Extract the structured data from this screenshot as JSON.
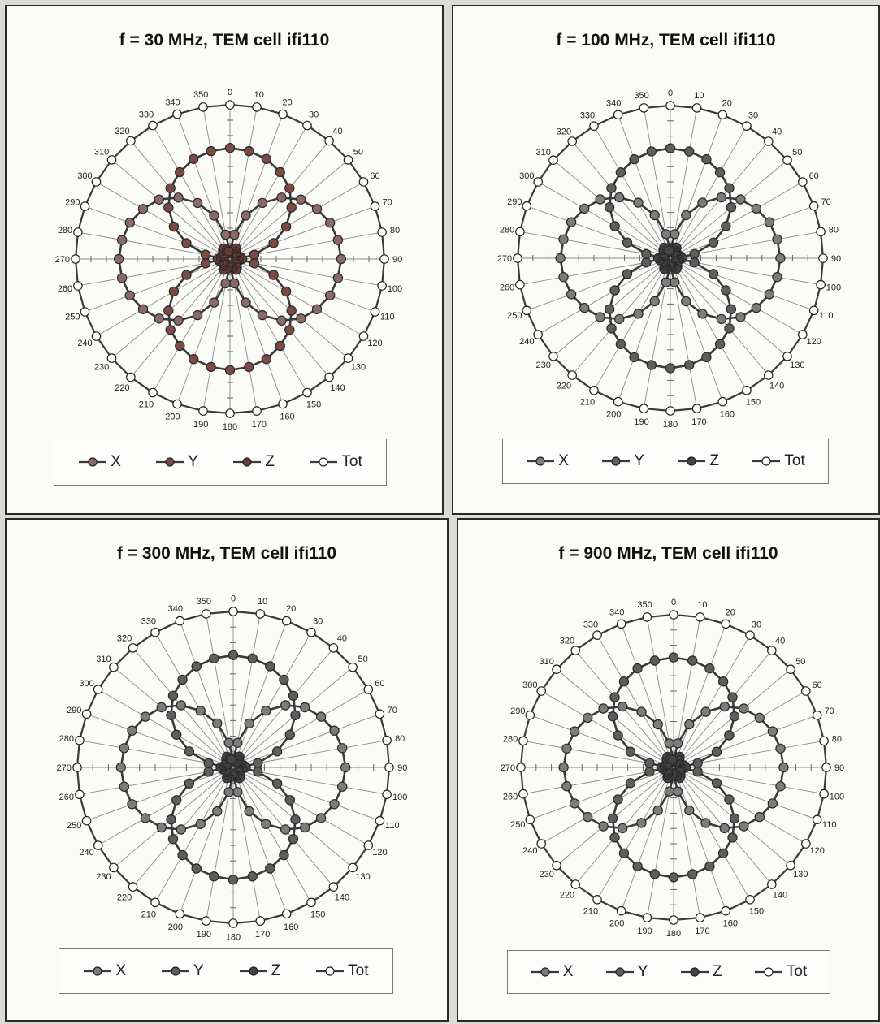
{
  "chart_data": [
    {
      "type": "polar",
      "title": "f = 30 MHz, TEM cell ifi110",
      "theta_labels": [
        "0",
        "10",
        "20",
        "30",
        "40",
        "50",
        "60",
        "70",
        "80",
        "90",
        "100",
        "110",
        "120",
        "130",
        "140",
        "150",
        "160",
        "170",
        "180",
        "190",
        "200",
        "210",
        "220",
        "230",
        "240",
        "250",
        "260",
        "270",
        "280",
        "290",
        "300",
        "310",
        "320",
        "330",
        "340",
        "350"
      ],
      "theta_step_deg": 10,
      "r_max": 1.0,
      "radial_gridlines": false,
      "colors": {
        "X": "#8a6a66",
        "Y": "#7a4a44",
        "Z": "#6b3a34",
        "Tot": "#ffffff",
        "line": "#3a3a3a"
      },
      "series": [
        {
          "name": "X",
          "values": [
            0.05,
            0.16,
            0.3,
            0.42,
            0.52,
            0.6,
            0.65,
            0.69,
            0.71,
            0.72,
            0.71,
            0.69,
            0.65,
            0.6,
            0.52,
            0.42,
            0.3,
            0.16,
            0.05,
            0.16,
            0.3,
            0.42,
            0.52,
            0.6,
            0.65,
            0.69,
            0.71,
            0.72,
            0.71,
            0.69,
            0.65,
            0.6,
            0.52,
            0.42,
            0.3,
            0.16
          ]
        },
        {
          "name": "Y",
          "values": [
            0.72,
            0.71,
            0.69,
            0.65,
            0.6,
            0.52,
            0.42,
            0.3,
            0.16,
            0.05,
            0.16,
            0.3,
            0.42,
            0.52,
            0.6,
            0.65,
            0.69,
            0.71,
            0.72,
            0.71,
            0.69,
            0.65,
            0.6,
            0.52,
            0.42,
            0.3,
            0.16,
            0.05,
            0.16,
            0.3,
            0.42,
            0.52,
            0.6,
            0.65,
            0.69,
            0.71
          ]
        },
        {
          "name": "Z",
          "values": [
            0.04,
            0.05,
            0.07,
            0.08,
            0.06,
            0.05,
            0.04,
            0.05,
            0.07,
            0.08,
            0.06,
            0.05,
            0.04,
            0.05,
            0.07,
            0.08,
            0.06,
            0.05,
            0.04,
            0.05,
            0.07,
            0.08,
            0.06,
            0.05,
            0.04,
            0.05,
            0.07,
            0.08,
            0.06,
            0.05,
            0.04,
            0.05,
            0.07,
            0.08,
            0.06,
            0.05
          ]
        },
        {
          "name": "Tot",
          "values": [
            1,
            1,
            1,
            1,
            1,
            1,
            1,
            1,
            1,
            1,
            1,
            1,
            1,
            1,
            1,
            1,
            1,
            1,
            1,
            1,
            1,
            1,
            1,
            1,
            1,
            1,
            1,
            1,
            1,
            1,
            1,
            1,
            1,
            1,
            1,
            1
          ]
        }
      ],
      "legend": {
        "position": "bottom",
        "items": [
          "X",
          "Y",
          "Z",
          "Tot"
        ]
      }
    },
    {
      "type": "polar",
      "title": "f = 100 MHz, TEM cell ifi110",
      "theta_labels": [
        "0",
        "10",
        "20",
        "30",
        "40",
        "50",
        "60",
        "70",
        "80",
        "90",
        "100",
        "110",
        "120",
        "130",
        "140",
        "150",
        "160",
        "170",
        "180",
        "190",
        "200",
        "210",
        "220",
        "230",
        "240",
        "250",
        "260",
        "270",
        "280",
        "290",
        "300",
        "310",
        "320",
        "330",
        "340",
        "350"
      ],
      "theta_step_deg": 10,
      "r_max": 1.0,
      "radial_gridlines": false,
      "colors": {
        "X": "#7c7c7c",
        "Y": "#5e5e5e",
        "Z": "#444444",
        "Tot": "#ffffff",
        "line": "#3a3a3a"
      },
      "series": [
        {
          "name": "X",
          "values": [
            0.05,
            0.16,
            0.3,
            0.42,
            0.52,
            0.6,
            0.65,
            0.69,
            0.71,
            0.72,
            0.71,
            0.69,
            0.65,
            0.6,
            0.52,
            0.42,
            0.3,
            0.16,
            0.05,
            0.16,
            0.3,
            0.42,
            0.52,
            0.6,
            0.65,
            0.69,
            0.71,
            0.72,
            0.71,
            0.69,
            0.65,
            0.6,
            0.52,
            0.42,
            0.3,
            0.16
          ]
        },
        {
          "name": "Y",
          "values": [
            0.72,
            0.71,
            0.69,
            0.65,
            0.6,
            0.52,
            0.42,
            0.3,
            0.16,
            0.05,
            0.16,
            0.3,
            0.42,
            0.52,
            0.6,
            0.65,
            0.69,
            0.71,
            0.72,
            0.71,
            0.69,
            0.65,
            0.6,
            0.52,
            0.42,
            0.3,
            0.16,
            0.05,
            0.16,
            0.3,
            0.42,
            0.52,
            0.6,
            0.65,
            0.69,
            0.71
          ]
        },
        {
          "name": "Z",
          "values": [
            0.04,
            0.05,
            0.07,
            0.08,
            0.06,
            0.05,
            0.04,
            0.05,
            0.07,
            0.08,
            0.06,
            0.05,
            0.04,
            0.05,
            0.07,
            0.08,
            0.06,
            0.05,
            0.04,
            0.05,
            0.07,
            0.08,
            0.06,
            0.05,
            0.04,
            0.05,
            0.07,
            0.08,
            0.06,
            0.05,
            0.04,
            0.05,
            0.07,
            0.08,
            0.06,
            0.05
          ]
        },
        {
          "name": "Tot",
          "values": [
            1,
            1,
            1,
            1,
            1,
            1,
            1,
            1,
            1,
            1,
            1,
            1,
            1,
            1,
            1,
            1,
            1,
            1,
            1,
            1,
            1,
            1,
            1,
            1,
            1,
            1,
            1,
            1,
            1,
            1,
            1,
            1,
            1,
            1,
            1,
            1
          ]
        }
      ],
      "legend": {
        "position": "bottom",
        "items": [
          "X",
          "Y",
          "Z",
          "Tot"
        ]
      }
    },
    {
      "type": "polar",
      "title": "f = 300 MHz, TEM cell ifi110",
      "theta_labels": [
        "0",
        "10",
        "20",
        "30",
        "40",
        "50",
        "60",
        "70",
        "80",
        "90",
        "100",
        "110",
        "120",
        "130",
        "140",
        "150",
        "160",
        "170",
        "180",
        "190",
        "200",
        "210",
        "220",
        "230",
        "240",
        "250",
        "260",
        "270",
        "280",
        "290",
        "300",
        "310",
        "320",
        "330",
        "340",
        "350"
      ],
      "theta_step_deg": 10,
      "r_max": 1.0,
      "radial_gridlines": false,
      "colors": {
        "X": "#7c7c7c",
        "Y": "#5e5e5e",
        "Z": "#444444",
        "Tot": "#ffffff",
        "line": "#3a3a3a"
      },
      "series": [
        {
          "name": "X",
          "values": [
            0.05,
            0.16,
            0.3,
            0.42,
            0.52,
            0.6,
            0.65,
            0.69,
            0.71,
            0.72,
            0.71,
            0.69,
            0.65,
            0.6,
            0.52,
            0.42,
            0.3,
            0.16,
            0.05,
            0.16,
            0.3,
            0.42,
            0.52,
            0.6,
            0.65,
            0.69,
            0.71,
            0.72,
            0.71,
            0.69,
            0.65,
            0.6,
            0.52,
            0.42,
            0.3,
            0.16
          ]
        },
        {
          "name": "Y",
          "values": [
            0.72,
            0.71,
            0.69,
            0.65,
            0.6,
            0.52,
            0.42,
            0.3,
            0.16,
            0.05,
            0.16,
            0.3,
            0.42,
            0.52,
            0.6,
            0.65,
            0.69,
            0.71,
            0.72,
            0.71,
            0.69,
            0.65,
            0.6,
            0.52,
            0.42,
            0.3,
            0.16,
            0.05,
            0.16,
            0.3,
            0.42,
            0.52,
            0.6,
            0.65,
            0.69,
            0.71
          ]
        },
        {
          "name": "Z",
          "values": [
            0.04,
            0.05,
            0.07,
            0.08,
            0.06,
            0.05,
            0.04,
            0.05,
            0.07,
            0.08,
            0.06,
            0.05,
            0.04,
            0.05,
            0.07,
            0.08,
            0.06,
            0.05,
            0.04,
            0.05,
            0.07,
            0.08,
            0.06,
            0.05,
            0.04,
            0.05,
            0.07,
            0.08,
            0.06,
            0.05,
            0.04,
            0.05,
            0.07,
            0.08,
            0.06,
            0.05
          ]
        },
        {
          "name": "Tot",
          "values": [
            1,
            1,
            1,
            1,
            1,
            1,
            1,
            1,
            1,
            1,
            1,
            1,
            1,
            1,
            1,
            1,
            1,
            1,
            1,
            1,
            1,
            1,
            1,
            1,
            1,
            1,
            1,
            1,
            1,
            1,
            1,
            1,
            1,
            1,
            1,
            1
          ]
        }
      ],
      "legend": {
        "position": "bottom",
        "items": [
          "X",
          "Y",
          "Z",
          "Tot"
        ]
      }
    },
    {
      "type": "polar",
      "title": "f = 900 MHz, TEM cell ifi110",
      "theta_labels": [
        "0",
        "10",
        "20",
        "30",
        "40",
        "50",
        "60",
        "70",
        "80",
        "90",
        "100",
        "110",
        "120",
        "130",
        "140",
        "150",
        "160",
        "170",
        "180",
        "190",
        "200",
        "210",
        "220",
        "230",
        "240",
        "250",
        "260",
        "270",
        "280",
        "290",
        "300",
        "310",
        "320",
        "330",
        "340",
        "350"
      ],
      "theta_step_deg": 10,
      "r_max": 1.0,
      "radial_gridlines": false,
      "colors": {
        "X": "#7c7c7c",
        "Y": "#5e5e5e",
        "Z": "#444444",
        "Tot": "#ffffff",
        "line": "#3a3a3a"
      },
      "series": [
        {
          "name": "X",
          "values": [
            0.05,
            0.16,
            0.3,
            0.42,
            0.52,
            0.6,
            0.65,
            0.69,
            0.71,
            0.72,
            0.71,
            0.69,
            0.65,
            0.6,
            0.52,
            0.42,
            0.3,
            0.16,
            0.05,
            0.16,
            0.3,
            0.42,
            0.52,
            0.6,
            0.65,
            0.69,
            0.71,
            0.72,
            0.71,
            0.69,
            0.65,
            0.6,
            0.52,
            0.42,
            0.3,
            0.16
          ]
        },
        {
          "name": "Y",
          "values": [
            0.72,
            0.71,
            0.69,
            0.65,
            0.6,
            0.52,
            0.42,
            0.3,
            0.16,
            0.05,
            0.16,
            0.3,
            0.42,
            0.52,
            0.6,
            0.65,
            0.69,
            0.71,
            0.72,
            0.71,
            0.69,
            0.65,
            0.6,
            0.52,
            0.42,
            0.3,
            0.16,
            0.05,
            0.16,
            0.3,
            0.42,
            0.52,
            0.6,
            0.65,
            0.69,
            0.71
          ]
        },
        {
          "name": "Z",
          "values": [
            0.04,
            0.05,
            0.07,
            0.08,
            0.06,
            0.05,
            0.04,
            0.05,
            0.07,
            0.08,
            0.06,
            0.05,
            0.04,
            0.05,
            0.07,
            0.08,
            0.06,
            0.05,
            0.04,
            0.05,
            0.07,
            0.08,
            0.06,
            0.05,
            0.04,
            0.05,
            0.07,
            0.08,
            0.06,
            0.05,
            0.04,
            0.05,
            0.07,
            0.08,
            0.06,
            0.05
          ]
        },
        {
          "name": "Tot",
          "values": [
            1,
            1,
            1,
            1,
            1,
            1,
            1,
            1,
            1,
            1,
            1,
            1,
            1,
            1,
            1,
            1,
            1,
            1,
            1,
            1,
            1,
            1,
            1,
            1,
            1,
            1,
            1,
            1,
            1,
            1,
            1,
            1,
            1,
            1,
            1,
            1
          ]
        }
      ],
      "legend": {
        "position": "bottom",
        "items": [
          "X",
          "Y",
          "Z",
          "Tot"
        ]
      }
    }
  ]
}
